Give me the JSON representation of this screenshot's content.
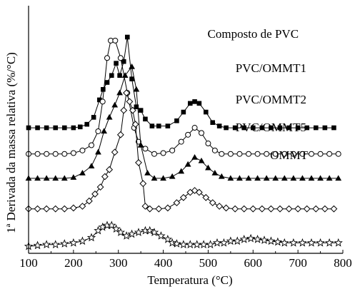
{
  "chart_data": {
    "type": "line",
    "title": "",
    "xlabel": "Temperatura (°C)",
    "ylabel": "1ª Derivada da massa relativa (%/°C)",
    "xlim": [
      100,
      800
    ],
    "xticks": [
      100,
      200,
      300,
      400,
      500,
      600,
      700,
      800
    ],
    "y_ticks_shown": false,
    "grid": false,
    "legend": "inline labels next to each curve",
    "series": [
      {
        "name": "Composto de PVC",
        "marker": "square-filled",
        "label_at": [
          600,
          0.815
        ],
        "points": [
          [
            100,
            0.3
          ],
          [
            120,
            0.3
          ],
          [
            140,
            0.3
          ],
          [
            160,
            0.3
          ],
          [
            180,
            0.3
          ],
          [
            200,
            0.3
          ],
          [
            215,
            0.305
          ],
          [
            230,
            0.32
          ],
          [
            245,
            0.36
          ],
          [
            258,
            0.46
          ],
          [
            266,
            0.52
          ],
          [
            275,
            0.56
          ],
          [
            285,
            0.6
          ],
          [
            295,
            0.67
          ],
          [
            303,
            0.6
          ],
          [
            312,
            0.68
          ],
          [
            320,
            0.82
          ],
          [
            330,
            0.58
          ],
          [
            340,
            0.42
          ],
          [
            350,
            0.4
          ],
          [
            360,
            0.35
          ],
          [
            375,
            0.31
          ],
          [
            390,
            0.31
          ],
          [
            410,
            0.31
          ],
          [
            430,
            0.34
          ],
          [
            445,
            0.39
          ],
          [
            460,
            0.44
          ],
          [
            470,
            0.45
          ],
          [
            480,
            0.44
          ],
          [
            495,
            0.39
          ],
          [
            510,
            0.33
          ],
          [
            525,
            0.31
          ],
          [
            540,
            0.3
          ],
          [
            560,
            0.3
          ],
          [
            580,
            0.3
          ],
          [
            600,
            0.3
          ],
          [
            620,
            0.3
          ],
          [
            640,
            0.3
          ],
          [
            660,
            0.3
          ],
          [
            680,
            0.3
          ],
          [
            700,
            0.3
          ],
          [
            720,
            0.3
          ],
          [
            740,
            0.3
          ],
          [
            760,
            0.3
          ],
          [
            780,
            0.3
          ]
        ]
      },
      {
        "name": "PVC/OMMT1",
        "marker": "circle-open",
        "label_at": [
          640,
          0.62
        ],
        "points": [
          [
            100,
            0.15
          ],
          [
            120,
            0.15
          ],
          [
            140,
            0.15
          ],
          [
            160,
            0.15
          ],
          [
            180,
            0.15
          ],
          [
            200,
            0.155
          ],
          [
            220,
            0.17
          ],
          [
            240,
            0.2
          ],
          [
            255,
            0.28
          ],
          [
            265,
            0.45
          ],
          [
            275,
            0.7
          ],
          [
            283,
            0.8
          ],
          [
            293,
            0.8
          ],
          [
            305,
            0.7
          ],
          [
            320,
            0.5
          ],
          [
            335,
            0.3
          ],
          [
            345,
            0.22
          ],
          [
            360,
            0.18
          ],
          [
            380,
            0.15
          ],
          [
            400,
            0.155
          ],
          [
            420,
            0.17
          ],
          [
            440,
            0.22
          ],
          [
            455,
            0.26
          ],
          [
            470,
            0.3
          ],
          [
            485,
            0.27
          ],
          [
            500,
            0.21
          ],
          [
            515,
            0.17
          ],
          [
            530,
            0.15
          ],
          [
            550,
            0.15
          ],
          [
            570,
            0.15
          ],
          [
            590,
            0.15
          ],
          [
            610,
            0.15
          ],
          [
            630,
            0.15
          ],
          [
            650,
            0.15
          ],
          [
            670,
            0.15
          ],
          [
            690,
            0.15
          ],
          [
            710,
            0.15
          ],
          [
            730,
            0.15
          ],
          [
            750,
            0.15
          ],
          [
            770,
            0.15
          ],
          [
            790,
            0.15
          ]
        ]
      },
      {
        "name": "PVC/OMMT2",
        "marker": "triangle-filled",
        "label_at": [
          640,
          0.44
        ],
        "points": [
          [
            100,
            0.01
          ],
          [
            120,
            0.01
          ],
          [
            140,
            0.01
          ],
          [
            160,
            0.01
          ],
          [
            180,
            0.01
          ],
          [
            200,
            0.015
          ],
          [
            220,
            0.04
          ],
          [
            240,
            0.08
          ],
          [
            255,
            0.16
          ],
          [
            268,
            0.28
          ],
          [
            280,
            0.36
          ],
          [
            292,
            0.43
          ],
          [
            303,
            0.5
          ],
          [
            315,
            0.6
          ],
          [
            330,
            0.65
          ],
          [
            340,
            0.52
          ],
          [
            350,
            0.2
          ],
          [
            365,
            0.04
          ],
          [
            380,
            0.01
          ],
          [
            400,
            0.01
          ],
          [
            420,
            0.02
          ],
          [
            440,
            0.05
          ],
          [
            455,
            0.09
          ],
          [
            470,
            0.13
          ],
          [
            485,
            0.11
          ],
          [
            500,
            0.07
          ],
          [
            515,
            0.04
          ],
          [
            530,
            0.02
          ],
          [
            550,
            0.01
          ],
          [
            570,
            0.01
          ],
          [
            590,
            0.01
          ],
          [
            610,
            0.01
          ],
          [
            630,
            0.01
          ],
          [
            650,
            0.01
          ],
          [
            670,
            0.01
          ],
          [
            690,
            0.01
          ],
          [
            710,
            0.01
          ],
          [
            730,
            0.01
          ],
          [
            750,
            0.01
          ],
          [
            770,
            0.01
          ],
          [
            790,
            0.01
          ]
        ]
      },
      {
        "name": "PVC/OMMT5",
        "marker": "diamond-open",
        "label_at": [
          640,
          0.28
        ],
        "points": [
          [
            100,
            -0.165
          ],
          [
            120,
            -0.165
          ],
          [
            140,
            -0.165
          ],
          [
            160,
            -0.165
          ],
          [
            180,
            -0.165
          ],
          [
            200,
            -0.16
          ],
          [
            220,
            -0.15
          ],
          [
            235,
            -0.12
          ],
          [
            248,
            -0.08
          ],
          [
            260,
            -0.04
          ],
          [
            270,
            0.02
          ],
          [
            280,
            0.06
          ],
          [
            292,
            0.16
          ],
          [
            305,
            0.26
          ],
          [
            312,
            0.4
          ],
          [
            318,
            0.5
          ],
          [
            325,
            0.45
          ],
          [
            332,
            0.4
          ],
          [
            338,
            0.32
          ],
          [
            345,
            0.1
          ],
          [
            355,
            -0.02
          ],
          [
            360,
            -0.15
          ],
          [
            370,
            -0.165
          ],
          [
            390,
            -0.165
          ],
          [
            410,
            -0.16
          ],
          [
            430,
            -0.13
          ],
          [
            445,
            -0.1
          ],
          [
            460,
            -0.07
          ],
          [
            470,
            -0.06
          ],
          [
            480,
            -0.07
          ],
          [
            495,
            -0.1
          ],
          [
            510,
            -0.13
          ],
          [
            525,
            -0.15
          ],
          [
            540,
            -0.16
          ],
          [
            560,
            -0.165
          ],
          [
            580,
            -0.165
          ],
          [
            600,
            -0.165
          ],
          [
            620,
            -0.165
          ],
          [
            640,
            -0.165
          ],
          [
            660,
            -0.165
          ],
          [
            680,
            -0.165
          ],
          [
            700,
            -0.165
          ],
          [
            720,
            -0.165
          ],
          [
            740,
            -0.165
          ],
          [
            760,
            -0.165
          ],
          [
            780,
            -0.165
          ]
        ]
      },
      {
        "name": "OMMT",
        "marker": "star-open",
        "label_at": [
          680,
          0.12
        ],
        "points": [
          [
            100,
            -0.38
          ],
          [
            120,
            -0.375
          ],
          [
            140,
            -0.37
          ],
          [
            160,
            -0.37
          ],
          [
            180,
            -0.365
          ],
          [
            200,
            -0.36
          ],
          [
            220,
            -0.35
          ],
          [
            240,
            -0.33
          ],
          [
            255,
            -0.29
          ],
          [
            265,
            -0.27
          ],
          [
            275,
            -0.26
          ],
          [
            285,
            -0.26
          ],
          [
            295,
            -0.28
          ],
          [
            305,
            -0.3
          ],
          [
            318,
            -0.32
          ],
          [
            330,
            -0.31
          ],
          [
            345,
            -0.3
          ],
          [
            360,
            -0.29
          ],
          [
            370,
            -0.29
          ],
          [
            380,
            -0.3
          ],
          [
            395,
            -0.32
          ],
          [
            410,
            -0.34
          ],
          [
            420,
            -0.36
          ],
          [
            430,
            -0.365
          ],
          [
            445,
            -0.37
          ],
          [
            460,
            -0.37
          ],
          [
            475,
            -0.37
          ],
          [
            490,
            -0.37
          ],
          [
            505,
            -0.37
          ],
          [
            520,
            -0.36
          ],
          [
            535,
            -0.36
          ],
          [
            550,
            -0.35
          ],
          [
            565,
            -0.35
          ],
          [
            580,
            -0.34
          ],
          [
            595,
            -0.335
          ],
          [
            610,
            -0.34
          ],
          [
            625,
            -0.345
          ],
          [
            640,
            -0.35
          ],
          [
            655,
            -0.355
          ],
          [
            670,
            -0.36
          ],
          [
            690,
            -0.36
          ],
          [
            710,
            -0.36
          ],
          [
            730,
            -0.36
          ],
          [
            750,
            -0.36
          ],
          [
            770,
            -0.36
          ],
          [
            790,
            -0.36
          ]
        ]
      }
    ]
  }
}
